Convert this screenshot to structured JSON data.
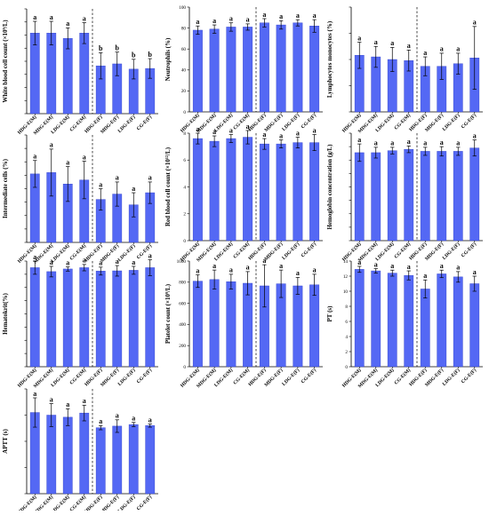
{
  "colors": {
    "bar": "#5468f4",
    "axis": "#000000"
  },
  "chart_data": [
    {
      "type": "bar",
      "ylabel": "White blood cell count (×10⁹/L)",
      "categories": [
        "HDG-E(M)",
        "MDG-E(M)",
        "LDG-E(M)",
        "CG-E(M)",
        "HDG-E(F)",
        "MDG-E(F)",
        "LDG-E(F)",
        "CG-E(F)"
      ],
      "values": [
        12.3,
        12.3,
        11.5,
        12.3,
        7.3,
        7.6,
        6.8,
        6.9
      ],
      "errors": [
        1.8,
        1.8,
        1.6,
        1.6,
        2.0,
        1.8,
        1.5,
        1.5
      ],
      "letters": [
        "a",
        "a",
        "a",
        "a",
        "b",
        "b",
        "b",
        "b"
      ],
      "ylim": [
        0,
        16
      ],
      "yticks": [
        0,
        2,
        4,
        6,
        8,
        10,
        12,
        14,
        16
      ],
      "tick_labels": [
        "",
        "",
        "",
        "",
        "",
        "",
        "",
        "",
        ""
      ],
      "divider_after": 4
    },
    {
      "type": "bar",
      "ylabel": "Neutrophils (%)",
      "categories": [
        "HDG-E(M)",
        "MDG-E(M)",
        "LDG-E(M)",
        "CG-E(M)",
        "HDG-E(F)",
        "MDG-E(F)",
        "LDG-E(F)",
        "CG-E(F)"
      ],
      "values": [
        78,
        79,
        81,
        81,
        85,
        83,
        85,
        82
      ],
      "errors": [
        4,
        4,
        4,
        3,
        4,
        4,
        3,
        6
      ],
      "letters": [
        "a",
        "a",
        "a",
        "a",
        "a",
        "a",
        "a",
        "a"
      ],
      "ylim": [
        0,
        100
      ],
      "yticks": [
        0,
        20,
        40,
        60,
        80,
        100
      ],
      "tick_labels": [
        "0",
        "20",
        "40",
        "60",
        "80",
        "100"
      ],
      "divider_after": 4
    },
    {
      "type": "bar",
      "ylabel": "Lymphocytes monocytes (%)",
      "categories": [
        "HDG-E(M)",
        "MDG-E(M)",
        "LDG-E(M)",
        "CG-E(M)",
        "HDG-E(F)",
        "MDG-E(F)",
        "LDG-E(F)",
        "CG-E(F)"
      ],
      "values": [
        10.8,
        10.5,
        10.0,
        9.8,
        8.7,
        8.7,
        9.2,
        10.3
      ],
      "errors": [
        2.5,
        2.0,
        2.3,
        2.0,
        1.8,
        2.5,
        2.0,
        6.0
      ],
      "letters": [
        "a",
        "a",
        "a",
        "a",
        "a",
        "a",
        "a",
        "a"
      ],
      "ylim": [
        0,
        20
      ],
      "yticks": [
        0,
        5,
        10,
        15,
        20
      ],
      "tick_labels": [
        "",
        "",
        "",
        "",
        ""
      ],
      "divider_after": 4
    },
    {
      "type": "bar",
      "ylabel": "Intermediate cells (%)",
      "categories": [
        "HDG-E(M)",
        "MDG-E(M)",
        "LDG-E(M)",
        "CG-E(M)",
        "HDG-E(F)",
        "MDG-E(F)",
        "LDG-E(F)",
        "CG-E(F)"
      ],
      "values": [
        10.2,
        10.4,
        8.7,
        9.3,
        6.4,
        7.2,
        5.6,
        7.4
      ],
      "errors": [
        2.0,
        3.5,
        2.6,
        2.8,
        1.6,
        1.8,
        1.8,
        1.6
      ],
      "letters": [
        "a",
        "a",
        "a",
        "a",
        "a",
        "a",
        "a",
        "a"
      ],
      "ylim": [
        0,
        16
      ],
      "yticks": [
        0,
        2,
        4,
        6,
        8,
        10,
        12,
        14,
        16
      ],
      "tick_labels": [
        "",
        "",
        "",
        "",
        "",
        "",
        "",
        "",
        ""
      ],
      "divider_after": 4
    },
    {
      "type": "bar",
      "ylabel": "Red blood cell count (×10¹²/L)",
      "categories": [
        "HDG-E(M)",
        "MDG-E(M)",
        "LDG-E(M)",
        "CG-E(M)",
        "HDG-E(F)",
        "MDG-E(F)",
        "LDG-E(F)",
        "CG-E(F)"
      ],
      "values": [
        7.6,
        7.4,
        7.6,
        7.7,
        7.2,
        7.2,
        7.3,
        7.3
      ],
      "errors": [
        0.4,
        0.4,
        0.3,
        0.5,
        0.4,
        0.3,
        0.4,
        0.6
      ],
      "letters": [
        "a",
        "a",
        "a",
        "a",
        "a",
        "a",
        "a",
        "a"
      ],
      "ylim": [
        0,
        8
      ],
      "yticks": [
        0,
        2,
        4,
        6,
        8
      ],
      "tick_labels": [
        "0",
        "2",
        "4",
        "6",
        "8"
      ],
      "divider_after": 4
    },
    {
      "type": "bar",
      "ylabel": "Hemoglobin concentration (g/L)",
      "categories": [
        "HDG-E(M)",
        "MDG-E(M)",
        "LDG-E(M)",
        "CG-E(M)",
        "HDG-E(F)",
        "MDG-E(F)",
        "LDG-E(F)",
        "CG-E(F)"
      ],
      "values": [
        131,
        131,
        134,
        136,
        133,
        133,
        133,
        138
      ],
      "errors": [
        13,
        8,
        5,
        5,
        6,
        7,
        6,
        12
      ],
      "letters": [
        "a",
        "a",
        "a",
        "a",
        "a",
        "a",
        "a",
        "a"
      ],
      "ylim": [
        0,
        160
      ],
      "yticks": [
        0,
        20,
        40,
        60,
        80,
        100,
        120,
        140,
        160
      ],
      "tick_labels": [
        "",
        "",
        "",
        "",
        "",
        "",
        "",
        "",
        ""
      ],
      "divider_after": 4
    },
    {
      "type": "bar",
      "ylabel": "Hematokrit(%)",
      "categories": [
        "HDG-E(M)",
        "MDG-E(M)",
        "LDG-E(M)",
        "CG-E(M)",
        "HDG-E(F)",
        "MDG-E(F)",
        "LDG-E(F)",
        "CG-E(F)"
      ],
      "values": [
        37.5,
        36.0,
        37.0,
        37.5,
        36.2,
        36.3,
        36.5,
        37.5
      ],
      "errors": [
        2.5,
        2.0,
        0.8,
        1.2,
        1.5,
        2.0,
        1.5,
        3.0
      ],
      "letters": [
        "a",
        "a",
        "a",
        "a",
        "a",
        "a",
        "a",
        "a"
      ],
      "ylim": [
        0,
        40
      ],
      "yticks": [
        0,
        5,
        10,
        15,
        20,
        25,
        30,
        35,
        40
      ],
      "tick_labels": [
        "",
        "",
        "",
        "",
        "",
        "",
        "",
        "",
        ""
      ],
      "divider_after": 4
    },
    {
      "type": "bar",
      "ylabel": "Platelet count (×10⁹/L)",
      "categories": [
        "HDG-E(M)",
        "MDG-E(M)",
        "LDG-E(M)",
        "CG-E(M)",
        "HDG-E(F)",
        "MDG-E(F)",
        "LDG-E(F)",
        "CG-E(F)"
      ],
      "values": [
        810,
        825,
        805,
        790,
        765,
        785,
        765,
        775
      ],
      "errors": [
        60,
        90,
        70,
        110,
        200,
        130,
        80,
        100
      ],
      "letters": [
        "a",
        "a",
        "a",
        "a",
        "a",
        "a",
        "a",
        "a"
      ],
      "ylim": [
        0,
        1000
      ],
      "yticks": [
        0,
        200,
        400,
        600,
        800,
        1000
      ],
      "tick_labels": [
        "0",
        "200",
        "400",
        "600",
        "800",
        "1000"
      ],
      "divider_after": 4
    },
    {
      "type": "bar",
      "ylabel": "PT (s)",
      "categories": [
        "HDG-E(M)",
        "MDG-E(M)",
        "LDG-E(M)",
        "CG-E(M)",
        "HDG-E(F)",
        "MDG-E(F)",
        "LDG-E(F)",
        "CG-E(F)"
      ],
      "values": [
        12.9,
        12.7,
        12.4,
        12.1,
        10.3,
        12.3,
        11.9,
        11.0
      ],
      "errors": [
        0.4,
        0.3,
        0.4,
        0.6,
        1.2,
        0.5,
        0.7,
        1.0
      ],
      "letters": [
        "a",
        "a",
        "a",
        "a",
        "a",
        "a",
        "a",
        "a"
      ],
      "ylim": [
        0,
        14
      ],
      "yticks": [
        0,
        2,
        4,
        6,
        8,
        10,
        12,
        14
      ],
      "tick_labels": [
        "0",
        "2",
        "4",
        "6",
        "8",
        "10",
        "12",
        "14"
      ],
      "divider_after": 4
    },
    {
      "type": "bar",
      "ylabel": "APTT (s)",
      "categories": [
        "HDG-E(M)",
        "MDG-E(M)",
        "LDG-E(M)",
        "CG-E(M)",
        "HDG-E(F)",
        "MDG-E(F)",
        "LDG-E(F)",
        "CG-E(F)"
      ],
      "values": [
        15.5,
        15.0,
        14.6,
        15.4,
        12.6,
        12.9,
        13.2,
        13.0
      ],
      "errors": [
        2.8,
        2.2,
        1.6,
        1.5,
        0.4,
        1.2,
        0.4,
        0.3
      ],
      "letters": [
        "a",
        "a",
        "a",
        "a",
        "a",
        "a",
        "a",
        "a"
      ],
      "ylim": [
        0,
        20
      ],
      "yticks": [
        0,
        5,
        10,
        15,
        20
      ],
      "tick_labels": [
        "",
        "",
        "",
        "",
        ""
      ],
      "divider_after": 4
    }
  ]
}
